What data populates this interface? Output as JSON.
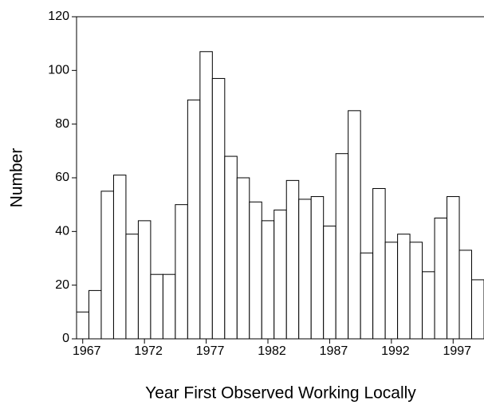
{
  "chart_data": {
    "type": "bar",
    "xlabel": "Year First Observed Working Locally",
    "ylabel": "Number",
    "x": [
      1967,
      1968,
      1969,
      1970,
      1971,
      1972,
      1973,
      1974,
      1975,
      1976,
      1977,
      1978,
      1979,
      1980,
      1981,
      1982,
      1983,
      1984,
      1985,
      1986,
      1987,
      1988,
      1989,
      1990,
      1991,
      1992,
      1993,
      1994,
      1995,
      1996,
      1997,
      1998,
      1999
    ],
    "values": [
      10,
      18,
      55,
      61,
      39,
      44,
      24,
      24,
      50,
      89,
      107,
      97,
      68,
      60,
      51,
      44,
      48,
      59,
      52,
      53,
      42,
      69,
      85,
      32,
      56,
      36,
      39,
      36,
      25,
      45,
      53,
      33,
      22
    ],
    "color": "#ffffff",
    "xlim": [
      1966.5,
      1999.5
    ],
    "xticks": [
      1967,
      1972,
      1977,
      1982,
      1987,
      1992,
      1997
    ],
    "ylim": [
      0,
      120
    ],
    "yticks": [
      0,
      20,
      40,
      60,
      80,
      100,
      120
    ]
  }
}
